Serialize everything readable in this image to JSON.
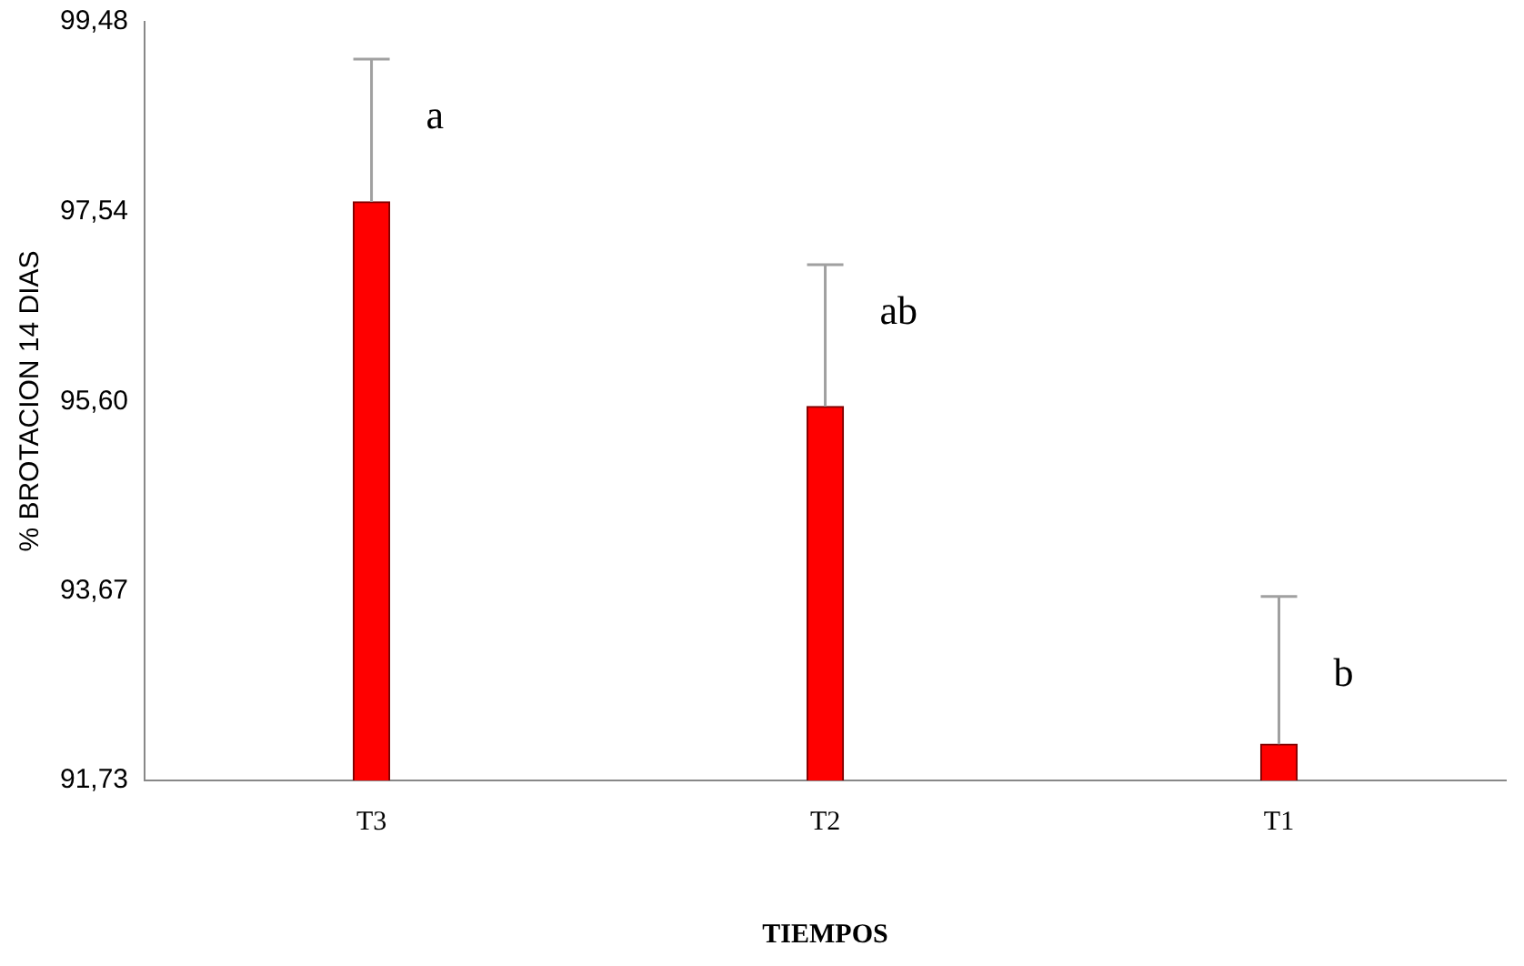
{
  "chart_data": {
    "type": "bar",
    "xlabel": "TIEMPOS",
    "ylabel": "% BROTACION 14 DIAS",
    "categories": [
      "T3",
      "T2",
      "T1"
    ],
    "values": [
      97.64,
      95.55,
      92.1
    ],
    "errors": [
      [
        97.64,
        99.1
      ],
      [
        95.55,
        97.0
      ],
      [
        92.1,
        93.61
      ]
    ],
    "color": "#ff0000",
    "ylim": [
      91.73,
      99.48
    ],
    "yticks": [
      {
        "value": 91.73,
        "label": "91,73"
      },
      {
        "value": 93.67,
        "label": "93,67"
      },
      {
        "value": 95.6,
        "label": "95,60"
      },
      {
        "value": 97.54,
        "label": "97,54"
      },
      {
        "value": 99.48,
        "label": "99,48"
      }
    ],
    "grid": false,
    "legend": false,
    "annotations": [
      {
        "text": "a",
        "x": "T3",
        "y": 98.5
      },
      {
        "text": "ab",
        "x": "T2",
        "y": 96.5
      },
      {
        "text": "b",
        "x": "T1",
        "y": 92.8
      }
    ]
  }
}
